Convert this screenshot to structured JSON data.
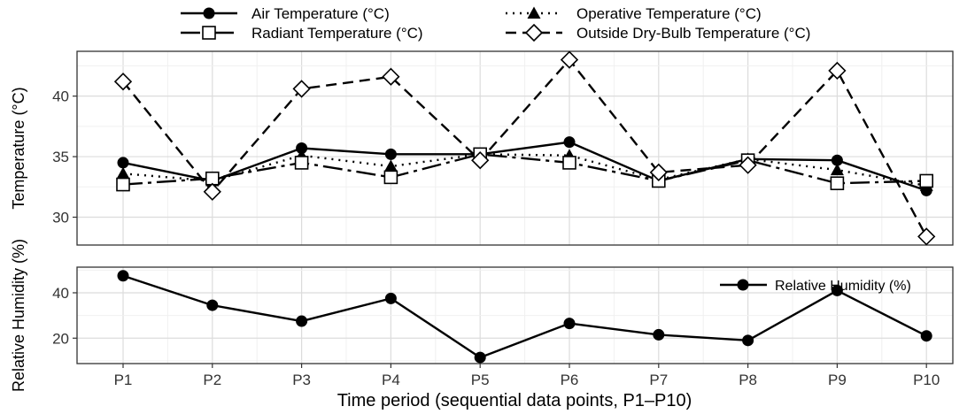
{
  "chart_data": [
    {
      "type": "line",
      "categories": [
        "P1",
        "P2",
        "P3",
        "P4",
        "P5",
        "P6",
        "P7",
        "P8",
        "P9",
        "P10"
      ],
      "ylabel": "Temperature (°C)",
      "ylim": [
        27.7,
        43.7
      ],
      "yticks": [
        30,
        35,
        40
      ],
      "grid": true,
      "legend": "top",
      "series": [
        {
          "name": "Air Temperature (°C)",
          "style": "solid",
          "marker": "filled-circle",
          "values": [
            34.5,
            33.0,
            35.7,
            35.2,
            35.2,
            36.2,
            33.0,
            34.8,
            34.7,
            32.2
          ]
        },
        {
          "name": "Operative Temperature (°C)",
          "style": "dotted",
          "marker": "filled-triangle",
          "values": [
            33.6,
            33.0,
            35.1,
            34.2,
            35.2,
            35.1,
            33.1,
            34.8,
            33.9,
            32.6
          ]
        },
        {
          "name": "Radiant Temperature (°C)",
          "style": "long-dash",
          "marker": "open-square",
          "values": [
            32.7,
            33.2,
            34.5,
            33.3,
            35.2,
            34.5,
            33.0,
            34.7,
            32.8,
            33.0
          ]
        },
        {
          "name": "Outside Dry-Bulb Temperature (°C)",
          "style": "dash",
          "marker": "open-diamond",
          "values": [
            41.2,
            32.1,
            40.6,
            41.6,
            34.7,
            43.0,
            33.7,
            34.3,
            42.1,
            28.4
          ]
        }
      ]
    },
    {
      "type": "line",
      "categories": [
        "P1",
        "P2",
        "P3",
        "P4",
        "P5",
        "P6",
        "P7",
        "P8",
        "P9",
        "P10"
      ],
      "xlabel": "Time period (sequential data points, P1–P10)",
      "ylabel": "Relative Humidity (%)",
      "ylim": [
        8.8,
        51.3
      ],
      "yticks": [
        20,
        40
      ],
      "grid": true,
      "legend": "top-right",
      "series": [
        {
          "name": "Relative Humidity (%)",
          "style": "solid",
          "marker": "filled-circle",
          "values": [
            47.5,
            34.5,
            27.5,
            37.5,
            11.5,
            26.5,
            21.5,
            19.0,
            41.0,
            21.0
          ]
        }
      ]
    }
  ]
}
